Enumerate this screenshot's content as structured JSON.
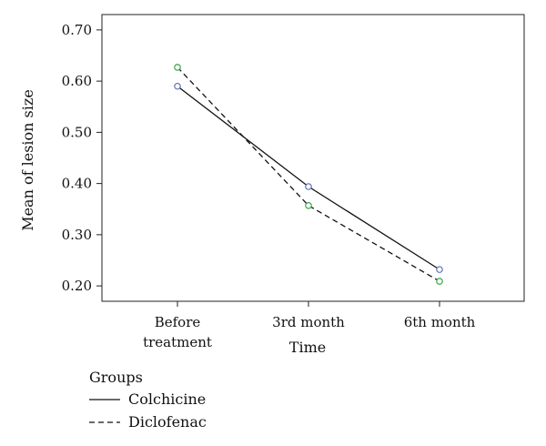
{
  "chart_data": {
    "type": "line",
    "xlabel": "Time",
    "ylabel": "Mean of lesion size",
    "categories": [
      [
        "Before",
        "treatment"
      ],
      [
        "3rd month"
      ],
      [
        "6th month"
      ]
    ],
    "yticks": [
      "0.20",
      "0.30",
      "0.40",
      "0.50",
      "0.60",
      "0.70"
    ],
    "ylim": [
      0.17,
      0.73
    ],
    "grid": false,
    "legend": {
      "title": "Groups",
      "position": "bottom-left"
    },
    "series": [
      {
        "name": "Colchicine",
        "values": [
          0.59,
          0.394,
          0.232
        ],
        "line_style": "solid",
        "marker_color": "#5a6fb5"
      },
      {
        "name": "Diclofenac",
        "values": [
          0.627,
          0.357,
          0.209
        ],
        "line_style": "dashed",
        "marker_color": "#3aa648"
      }
    ]
  }
}
